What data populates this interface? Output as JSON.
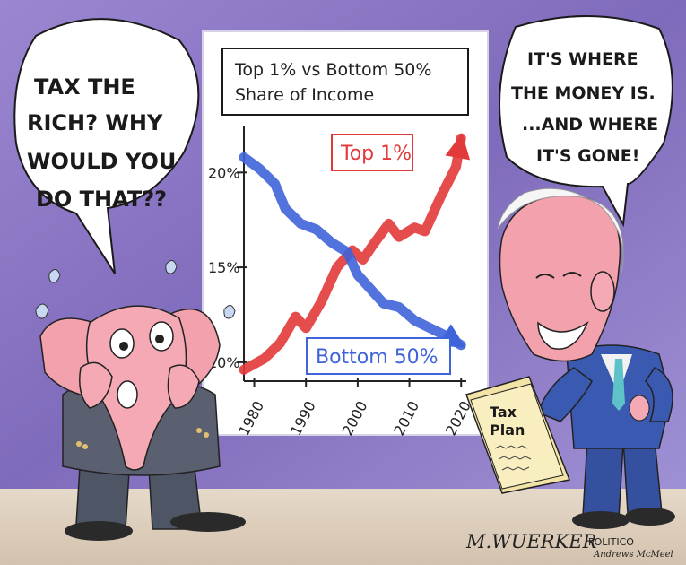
{
  "left_bubble": {
    "lines": [
      "TAX THE",
      "RICH? WHY",
      "WOULD YOU",
      "DO THAT??"
    ]
  },
  "right_bubble": {
    "lines": [
      "IT'S WHERE",
      "THE MONEY IS.",
      "...AND WHERE",
      "IT'S GONE!"
    ]
  },
  "document": {
    "label_lines": [
      "Tax",
      "Plan"
    ]
  },
  "signature": {
    "artist": "M.WUERKER",
    "outlet": "POLITICO",
    "colorist": "Andrews McMeel"
  },
  "chart_data": {
    "type": "line",
    "title_lines": [
      "Top 1% vs Bottom 50%",
      "Share of Income"
    ],
    "x_tick_labels": [
      "1980",
      "1990",
      "2000",
      "2010",
      "2020"
    ],
    "y_tick_labels": [
      "20%",
      "15%",
      "10%"
    ],
    "ylim": [
      9,
      22
    ],
    "xlim": [
      1978,
      2021
    ],
    "series": [
      {
        "name": "Top 1%",
        "color": "#e23a3a",
        "points": [
          [
            1978,
            9.6
          ],
          [
            1982,
            10.2
          ],
          [
            1985,
            11.0
          ],
          [
            1988,
            12.4
          ],
          [
            1990,
            11.8
          ],
          [
            1993,
            13.2
          ],
          [
            1996,
            15.0
          ],
          [
            1999,
            15.9
          ],
          [
            2001,
            15.4
          ],
          [
            2003,
            16.2
          ],
          [
            2006,
            17.3
          ],
          [
            2008,
            16.6
          ],
          [
            2011,
            17.1
          ],
          [
            2013,
            16.9
          ],
          [
            2016,
            18.7
          ],
          [
            2019,
            20.3
          ],
          [
            2020,
            21.8
          ]
        ]
      },
      {
        "name": "Bottom 50%",
        "color": "#3f63d9",
        "points": [
          [
            1978,
            20.8
          ],
          [
            1981,
            20.2
          ],
          [
            1984,
            19.4
          ],
          [
            1986,
            18.1
          ],
          [
            1989,
            17.3
          ],
          [
            1992,
            17.0
          ],
          [
            1995,
            16.3
          ],
          [
            1998,
            15.8
          ],
          [
            2000,
            14.6
          ],
          [
            2002,
            14.0
          ],
          [
            2005,
            13.1
          ],
          [
            2008,
            12.9
          ],
          [
            2011,
            12.2
          ],
          [
            2014,
            11.8
          ],
          [
            2017,
            11.4
          ],
          [
            2020,
            10.9
          ]
        ]
      }
    ],
    "colors": {
      "wall": "#8f7bc8",
      "board": "#ffffff",
      "floor": "#ded0bf",
      "elephant": "#f2a1ad",
      "suit_elephant": "#5a6070",
      "suit_biden": "#3a59b1"
    }
  }
}
